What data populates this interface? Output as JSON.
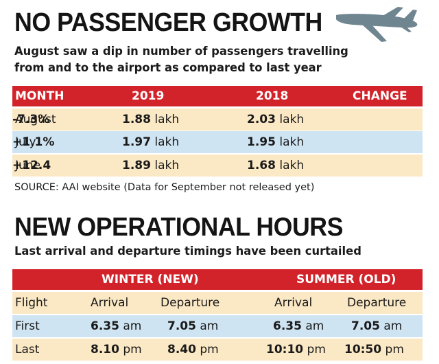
{
  "section1": {
    "title": "NO PASSENGER GROWTH",
    "subtitle_line1": "August saw a dip in number of passengers travelling",
    "subtitle_line2": "from and to the airport as compared to last year",
    "headers": {
      "month": "MONTH",
      "y2019": "2019",
      "y2018": "2018",
      "change": "CHANGE"
    },
    "rows": [
      {
        "month": "August",
        "v2019": "1.88",
        "v2018": "2.03",
        "unit": "lakh",
        "change": "-7.3%"
      },
      {
        "month": "July",
        "v2019": "1.97",
        "v2018": "1.95",
        "unit": "lakh",
        "change": "+1.1%"
      },
      {
        "month": "June",
        "v2019": "1.89",
        "v2018": "1.68",
        "unit": "lakh",
        "change": "+12.4"
      }
    ],
    "source": "SOURCE: AAI website (Data for September not released yet)"
  },
  "section2": {
    "title": "NEW OPERATIONAL HOURS",
    "subtitle": "Last arrival and departure timings have been curtailed",
    "group_winter": "WINTER (NEW)",
    "group_summer": "SUMMER (OLD)",
    "headers": {
      "flight": "Flight",
      "arrival": "Arrival",
      "departure": "Departure"
    },
    "rows": [
      {
        "flight": "First",
        "w_arr": "6.35",
        "w_arr_unit": "am",
        "w_dep": "7.05",
        "w_dep_unit": "am",
        "s_arr": "6.35",
        "s_arr_unit": "am",
        "s_dep": "7.05",
        "s_dep_unit": "am"
      },
      {
        "flight": "Last",
        "w_arr": "8.10",
        "w_arr_unit": "pm",
        "w_dep": "8.40",
        "w_dep_unit": "pm",
        "s_arr": "10:10",
        "s_arr_unit": "pm",
        "s_dep": "10:50",
        "s_dep_unit": "pm"
      }
    ]
  },
  "icons": {
    "plane": "airplane-icon"
  },
  "colors": {
    "header_red": "#d2232a",
    "row_beige": "#fbe8c4",
    "row_blue": "#cfe4f2",
    "plane_gray": "#6f8590"
  }
}
